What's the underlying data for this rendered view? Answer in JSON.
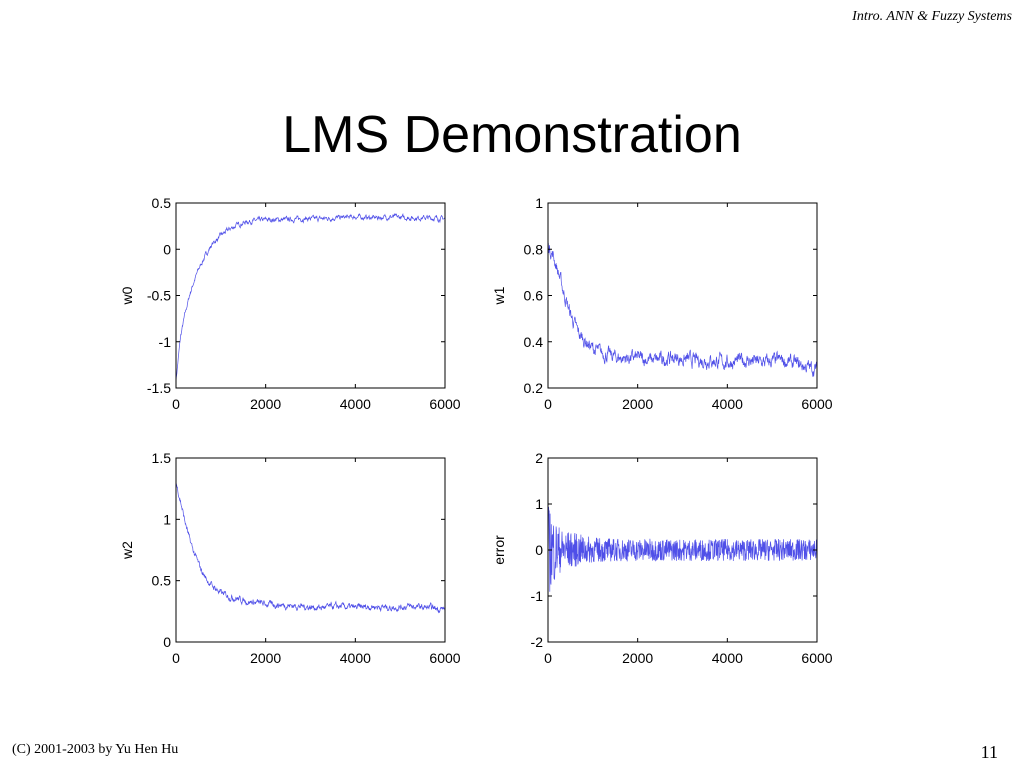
{
  "header": {
    "course": "Intro. ANN & Fuzzy Systems"
  },
  "slide": {
    "title": "LMS Demonstration"
  },
  "footer": {
    "copyright": "(C) 2001-2003  by Yu Hen Hu",
    "page": "11"
  },
  "colors": {
    "line": "#4f4fe8",
    "axes": "#000000",
    "background": "#ffffff"
  },
  "chart_data": [
    {
      "type": "line",
      "ylabel": "w0",
      "xlim": [
        0,
        6000
      ],
      "ylim": [
        -1.5,
        0.5
      ],
      "xticks": [
        0,
        2000,
        4000,
        6000
      ],
      "xtick_labels": [
        "0",
        "2000",
        "4000",
        "6000"
      ],
      "yticks": [
        0.5,
        0,
        -0.5,
        -1,
        -1.5
      ],
      "ytick_labels": [
        "0.5",
        "0",
        "-0.5",
        "-1",
        "-1.5"
      ],
      "series": [
        {
          "x": [
            0,
            100,
            200,
            300,
            400,
            500,
            600,
            700,
            800,
            900,
            1000,
            1200,
            1400,
            1600,
            1800,
            2000,
            2400,
            2800,
            3200,
            3600,
            4000,
            4400,
            4800,
            5200,
            5600,
            6000
          ],
          "values": [
            -1.42,
            -0.95,
            -0.7,
            -0.5,
            -0.35,
            -0.22,
            -0.12,
            -0.03,
            0.05,
            0.1,
            0.15,
            0.22,
            0.27,
            0.3,
            0.31,
            0.32,
            0.32,
            0.33,
            0.33,
            0.34,
            0.35,
            0.34,
            0.35,
            0.34,
            0.34,
            0.33
          ],
          "noise": 0.03
        }
      ]
    },
    {
      "type": "line",
      "ylabel": "w1",
      "xlim": [
        0,
        6000
      ],
      "ylim": [
        0.2,
        1
      ],
      "xticks": [
        0,
        2000,
        4000,
        6000
      ],
      "xtick_labels": [
        "0",
        "2000",
        "4000",
        "6000"
      ],
      "yticks": [
        1,
        0.8,
        0.6,
        0.4,
        0.2
      ],
      "ytick_labels": [
        "1",
        "0.8",
        "0.6",
        "0.4",
        "0.2"
      ],
      "series": [
        {
          "x": [
            0,
            100,
            200,
            300,
            400,
            500,
            600,
            700,
            800,
            900,
            1000,
            1200,
            1400,
            1600,
            1800,
            2000,
            2400,
            2800,
            3200,
            3600,
            4000,
            4400,
            4800,
            5200,
            5600,
            6000
          ],
          "values": [
            0.82,
            0.78,
            0.72,
            0.65,
            0.58,
            0.52,
            0.47,
            0.43,
            0.41,
            0.39,
            0.37,
            0.35,
            0.34,
            0.33,
            0.33,
            0.33,
            0.32,
            0.33,
            0.32,
            0.32,
            0.31,
            0.32,
            0.31,
            0.32,
            0.3,
            0.28
          ],
          "noise": 0.035
        }
      ]
    },
    {
      "type": "line",
      "ylabel": "w2",
      "xlim": [
        0,
        6000
      ],
      "ylim": [
        0,
        1.5
      ],
      "xticks": [
        0,
        2000,
        4000,
        6000
      ],
      "xtick_labels": [
        "0",
        "2000",
        "4000",
        "6000"
      ],
      "yticks": [
        1.5,
        1,
        0.5,
        0
      ],
      "ytick_labels": [
        "1.5",
        "1",
        "0.5",
        "0"
      ],
      "series": [
        {
          "x": [
            0,
            100,
            200,
            300,
            400,
            500,
            600,
            700,
            800,
            900,
            1000,
            1200,
            1400,
            1600,
            1800,
            2000,
            2400,
            2800,
            3200,
            3600,
            4000,
            4400,
            4800,
            5200,
            5600,
            6000
          ],
          "values": [
            1.3,
            1.15,
            0.98,
            0.84,
            0.73,
            0.64,
            0.56,
            0.5,
            0.46,
            0.43,
            0.4,
            0.37,
            0.35,
            0.33,
            0.32,
            0.31,
            0.3,
            0.29,
            0.28,
            0.29,
            0.28,
            0.29,
            0.28,
            0.29,
            0.28,
            0.27
          ],
          "noise": 0.03
        }
      ]
    },
    {
      "type": "line",
      "ylabel": "error",
      "xlim": [
        0,
        6000
      ],
      "ylim": [
        -2,
        2
      ],
      "xticks": [
        0,
        2000,
        4000,
        6000
      ],
      "xtick_labels": [
        "0",
        "2000",
        "4000",
        "6000"
      ],
      "yticks": [
        2,
        1,
        0,
        -1,
        -2
      ],
      "ytick_labels": [
        "2",
        "1",
        "0",
        "-1",
        "-2"
      ],
      "series": [
        {
          "x": [
            0,
            100,
            200,
            300,
            500,
            800,
            1000,
            1500,
            2000,
            3000,
            4000,
            5000,
            6000
          ],
          "amplitude": [
            1.0,
            0.8,
            0.6,
            0.45,
            0.4,
            0.32,
            0.28,
            0.25,
            0.25,
            0.24,
            0.24,
            0.24,
            0.24
          ],
          "center": 0
        }
      ]
    }
  ]
}
